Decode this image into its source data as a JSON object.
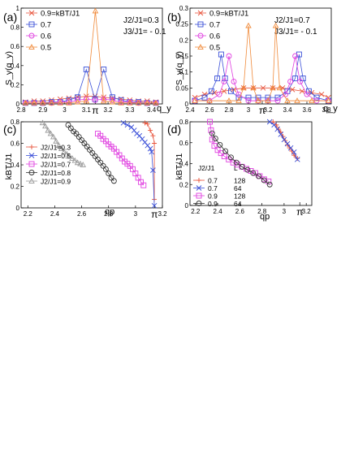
{
  "chart_data": [
    {
      "panel": "(a)",
      "type": "line",
      "ylabel": "S_y(q_y)",
      "xlabel": "q_y",
      "xlim": [
        2.8,
        3.45
      ],
      "ylim": [
        0,
        1.0
      ],
      "xticks": [
        "2.8",
        "2.9",
        "3",
        "3.1",
        "3.2",
        "3.3",
        "3.4"
      ],
      "yticks": [
        "0",
        "0.2",
        "0.4",
        "0.6",
        "0.8",
        "1"
      ],
      "pi_tick": "π",
      "annotation_lines": [
        "J2/J1=0.3",
        "J3/J1= - 0.1"
      ],
      "legend_title_suffix": "=kBT/J1",
      "series": [
        {
          "name": "0.9",
          "color": "#e8543c",
          "marker": "x",
          "x": [
            2.82,
            2.86,
            2.9,
            2.94,
            2.98,
            3.02,
            3.06,
            3.1,
            3.14,
            3.18,
            3.22,
            3.26,
            3.3,
            3.34,
            3.38,
            3.42
          ],
          "y": [
            0.02,
            0.03,
            0.03,
            0.04,
            0.05,
            0.06,
            0.07,
            0.08,
            0.08,
            0.07,
            0.06,
            0.05,
            0.04,
            0.03,
            0.03,
            0.02
          ]
        },
        {
          "name": "0.7",
          "color": "#3a4fd8",
          "marker": "square",
          "x": [
            2.82,
            2.86,
            2.9,
            2.94,
            2.98,
            3.02,
            3.06,
            3.1,
            3.14,
            3.18,
            3.22,
            3.26,
            3.3,
            3.34,
            3.38,
            3.42
          ],
          "y": [
            0.01,
            0.01,
            0.01,
            0.02,
            0.02,
            0.04,
            0.07,
            0.36,
            0.05,
            0.36,
            0.07,
            0.04,
            0.02,
            0.02,
            0.01,
            0.01
          ]
        },
        {
          "name": "0.6",
          "color": "#e040e0",
          "marker": "circle",
          "x": [
            2.82,
            2.86,
            2.9,
            2.94,
            2.98,
            3.02,
            3.06,
            3.1,
            3.14,
            3.18,
            3.22,
            3.26,
            3.3,
            3.34,
            3.38,
            3.42
          ],
          "y": [
            0.01,
            0.01,
            0.01,
            0.01,
            0.02,
            0.02,
            0.04,
            0.05,
            0.04,
            0.05,
            0.04,
            0.02,
            0.02,
            0.01,
            0.01,
            0.01
          ]
        },
        {
          "name": "0.5",
          "color": "#f08a3a",
          "marker": "triangle",
          "x": [
            2.82,
            2.86,
            2.9,
            2.94,
            2.98,
            3.02,
            3.06,
            3.1,
            3.1416,
            3.18,
            3.22,
            3.26,
            3.3,
            3.34,
            3.38,
            3.42
          ],
          "y": [
            0.01,
            0.01,
            0.01,
            0.01,
            0.01,
            0.01,
            0.02,
            0.03,
            0.97,
            0.03,
            0.02,
            0.01,
            0.01,
            0.01,
            0.01,
            0.01
          ]
        }
      ]
    },
    {
      "panel": "(b)",
      "type": "line",
      "ylabel": "S_y(q_y)",
      "xlabel": "q_y",
      "xlim": [
        2.4,
        3.85
      ],
      "ylim": [
        0,
        0.3
      ],
      "xticks": [
        "2.4",
        "2.6",
        "2.8",
        "3",
        "3.2",
        "3.4",
        "3.6",
        "3.8"
      ],
      "yticks": [
        "0",
        "0.05",
        "0.1",
        "0.15",
        "0.2",
        "0.25",
        "0.3"
      ],
      "pi_tick": "π",
      "annotation_lines": [
        "J2/J1=0.7",
        "J3/J1= - 0.1"
      ],
      "legend_title_suffix": "=kBT/J1",
      "series": [
        {
          "name": "0.9",
          "color": "#e8543c",
          "marker": "x",
          "x": [
            2.45,
            2.55,
            2.65,
            2.75,
            2.85,
            2.95,
            3.05,
            3.15,
            3.25,
            3.35,
            3.45,
            3.55,
            3.65,
            3.75,
            3.82
          ],
          "y": [
            0.02,
            0.03,
            0.035,
            0.04,
            0.045,
            0.05,
            0.05,
            0.05,
            0.05,
            0.05,
            0.045,
            0.04,
            0.035,
            0.03,
            0.02
          ]
        },
        {
          "name": "0.7",
          "color": "#3a4fd8",
          "marker": "square",
          "x": [
            2.45,
            2.55,
            2.62,
            2.68,
            2.72,
            2.76,
            2.82,
            2.9,
            3.0,
            3.1,
            3.2,
            3.3,
            3.4,
            3.48,
            3.52,
            3.56,
            3.62,
            3.7,
            3.82
          ],
          "y": [
            0.01,
            0.02,
            0.04,
            0.08,
            0.155,
            0.08,
            0.04,
            0.02,
            0.02,
            0.02,
            0.02,
            0.02,
            0.04,
            0.08,
            0.155,
            0.08,
            0.04,
            0.02,
            0.01
          ]
        },
        {
          "name": "0.6",
          "color": "#e040e0",
          "marker": "circle",
          "x": [
            2.45,
            2.6,
            2.7,
            2.75,
            2.8,
            2.85,
            2.9,
            3.0,
            3.1,
            3.2,
            3.3,
            3.38,
            3.43,
            3.48,
            3.53,
            3.6,
            3.7,
            3.82
          ],
          "y": [
            0.01,
            0.01,
            0.03,
            0.07,
            0.15,
            0.07,
            0.03,
            0.01,
            0.01,
            0.01,
            0.01,
            0.03,
            0.07,
            0.15,
            0.07,
            0.03,
            0.01,
            0.01
          ]
        },
        {
          "name": "0.5",
          "color": "#f08a3a",
          "marker": "triangle",
          "x": [
            2.45,
            2.6,
            2.8,
            2.9,
            2.95,
            3.0,
            3.05,
            3.1,
            3.2,
            3.25,
            3.28,
            3.32,
            3.4,
            3.5,
            3.65,
            3.82
          ],
          "y": [
            0.01,
            0.01,
            0.01,
            0.01,
            0.05,
            0.245,
            0.05,
            0.01,
            0.01,
            0.05,
            0.245,
            0.05,
            0.01,
            0.01,
            0.01,
            0.01
          ]
        }
      ]
    },
    {
      "panel": "(c)",
      "type": "line",
      "ylabel": "kBT/J1",
      "xlabel": "qp",
      "xlim": [
        2.15,
        3.2
      ],
      "ylim": [
        0,
        0.8
      ],
      "xticks": [
        "2.2",
        "2.4",
        "2.6",
        "2.8",
        "3",
        "3.2"
      ],
      "yticks": [
        "0",
        "0.2",
        "0.4",
        "0.6",
        "0.8"
      ],
      "pi_tick": "π",
      "series": [
        {
          "name": "J2/J1=0.3",
          "color": "#e8543c",
          "marker": "plus",
          "x": [
            3.07,
            3.09,
            3.11,
            3.13,
            3.14,
            3.14
          ],
          "y": [
            0.79,
            0.78,
            0.72,
            0.67,
            0.6,
            0.08
          ]
        },
        {
          "name": "J2/J1=0.5",
          "color": "#3a4fd8",
          "marker": "x",
          "x": [
            2.91,
            2.94,
            2.97,
            2.99,
            3.01,
            3.03,
            3.05,
            3.07,
            3.09,
            3.11,
            3.12,
            3.13,
            3.14
          ],
          "y": [
            0.79,
            0.77,
            0.75,
            0.72,
            0.69,
            0.67,
            0.64,
            0.61,
            0.58,
            0.55,
            0.52,
            0.35,
            0.02
          ]
        },
        {
          "name": "J2/J1=0.7",
          "color": "#e040e0",
          "marker": "square",
          "x": [
            2.72,
            2.74,
            2.76,
            2.78,
            2.8,
            2.82,
            2.84,
            2.86,
            2.88,
            2.9,
            2.92,
            2.94,
            2.96,
            2.98,
            3.0,
            3.02,
            3.04,
            3.06
          ],
          "y": [
            0.69,
            0.67,
            0.64,
            0.62,
            0.59,
            0.57,
            0.55,
            0.52,
            0.49,
            0.46,
            0.43,
            0.41,
            0.39,
            0.36,
            0.32,
            0.28,
            0.24,
            0.21
          ]
        },
        {
          "name": "J2/J1=0.8",
          "color": "#333333",
          "marker": "circle",
          "x": [
            2.5,
            2.52,
            2.54,
            2.56,
            2.58,
            2.6,
            2.62,
            2.64,
            2.66,
            2.68,
            2.7,
            2.72,
            2.74,
            2.76,
            2.78,
            2.8,
            2.82,
            2.84
          ],
          "y": [
            0.77,
            0.74,
            0.71,
            0.69,
            0.66,
            0.63,
            0.6,
            0.57,
            0.54,
            0.51,
            0.48,
            0.45,
            0.42,
            0.39,
            0.36,
            0.32,
            0.28,
            0.25
          ]
        },
        {
          "name": "J2/J1=0.9",
          "color": "#9a9a9a",
          "marker": "triangle",
          "x": [
            2.31,
            2.33,
            2.35,
            2.37,
            2.39,
            2.41,
            2.43,
            2.45,
            2.47,
            2.49,
            2.51,
            2.53,
            2.55,
            2.57,
            2.59,
            2.61
          ],
          "y": [
            0.79,
            0.76,
            0.72,
            0.69,
            0.66,
            0.62,
            0.58,
            0.55,
            0.52,
            0.5,
            0.48,
            0.46,
            0.44,
            0.42,
            0.41,
            0.4
          ]
        }
      ]
    },
    {
      "panel": "(d)",
      "type": "line",
      "ylabel": "kBT/J1",
      "xlabel": "qp",
      "xlim": [
        2.15,
        3.25
      ],
      "ylim": [
        0,
        0.8
      ],
      "xticks": [
        "2.2",
        "2.4",
        "2.6",
        "2.8",
        "3",
        "3.2"
      ],
      "yticks": [
        "0",
        "0.2",
        "0.4",
        "0.6",
        "0.8"
      ],
      "pi_tick": "π",
      "legend_header": [
        "J2/J1",
        "L"
      ],
      "series": [
        {
          "name": "0.7",
          "L": "128",
          "color": "#e8543c",
          "marker": "plus",
          "x": [
            2.9,
            2.93,
            2.95,
            2.97,
            2.99,
            3.01,
            3.03,
            3.05,
            3.07,
            3.09,
            3.12
          ],
          "y": [
            0.8,
            0.77,
            0.73,
            0.7,
            0.66,
            0.62,
            0.58,
            0.55,
            0.52,
            0.48,
            0.45
          ]
        },
        {
          "name": "0.7",
          "L": "64",
          "color": "#3a4fd8",
          "marker": "x",
          "x": [
            2.87,
            2.91,
            2.94,
            2.97,
            3.0,
            3.03,
            3.06,
            3.09,
            3.12
          ],
          "y": [
            0.8,
            0.77,
            0.73,
            0.68,
            0.63,
            0.59,
            0.55,
            0.51,
            0.44
          ]
        },
        {
          "name": "0.9",
          "L": "128",
          "color": "#e040e0",
          "marker": "square",
          "x": [
            2.33,
            2.34,
            2.35,
            2.37,
            2.4,
            2.43,
            2.46,
            2.5,
            2.54,
            2.58,
            2.62,
            2.66,
            2.7,
            2.74,
            2.78,
            2.82,
            2.86
          ],
          "y": [
            0.8,
            0.72,
            0.63,
            0.57,
            0.53,
            0.5,
            0.47,
            0.44,
            0.41,
            0.39,
            0.37,
            0.35,
            0.33,
            0.31,
            0.28,
            0.25,
            0.23
          ]
        },
        {
          "name": "0.9",
          "L": "64",
          "color": "#333333",
          "marker": "circle",
          "x": [
            2.35,
            2.38,
            2.42,
            2.47,
            2.52,
            2.57,
            2.62,
            2.67,
            2.72,
            2.77,
            2.82,
            2.87
          ],
          "y": [
            0.69,
            0.64,
            0.58,
            0.52,
            0.46,
            0.41,
            0.37,
            0.34,
            0.31,
            0.28,
            0.24,
            0.2
          ]
        }
      ]
    }
  ]
}
